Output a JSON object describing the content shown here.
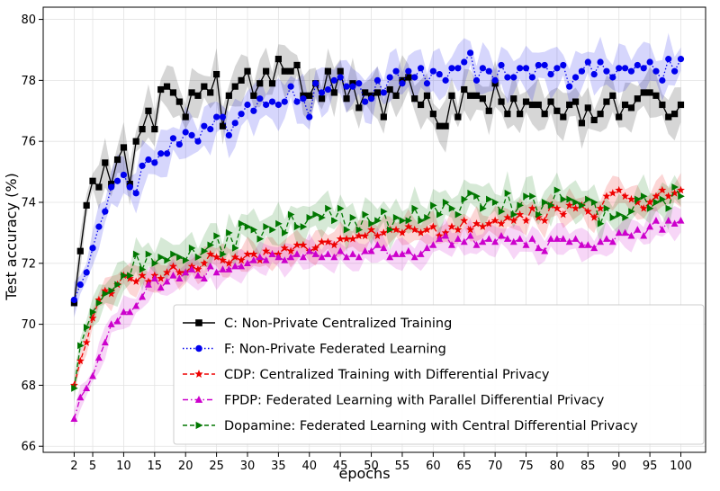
{
  "chart_data": {
    "type": "line",
    "xlabel": "epochs",
    "ylabel": "Test accuracy (%)",
    "xlim": [
      -3,
      104
    ],
    "ylim": [
      65.8,
      80.4
    ],
    "xticks": [
      2,
      5,
      10,
      15,
      20,
      25,
      30,
      35,
      40,
      45,
      50,
      55,
      60,
      65,
      70,
      75,
      80,
      85,
      90,
      95,
      100
    ],
    "yticks": [
      66,
      68,
      70,
      72,
      74,
      76,
      78,
      80
    ],
    "grid": true,
    "legend_position": "bottom-right",
    "x": [
      2,
      3,
      4,
      5,
      6,
      7,
      8,
      9,
      10,
      11,
      12,
      13,
      14,
      15,
      16,
      17,
      18,
      19,
      20,
      21,
      22,
      23,
      24,
      25,
      26,
      27,
      28,
      29,
      30,
      31,
      32,
      33,
      34,
      35,
      36,
      37,
      38,
      39,
      40,
      41,
      42,
      43,
      44,
      45,
      46,
      47,
      48,
      49,
      50,
      51,
      52,
      53,
      54,
      55,
      56,
      57,
      58,
      59,
      60,
      61,
      62,
      63,
      64,
      65,
      66,
      67,
      68,
      69,
      70,
      71,
      72,
      73,
      74,
      75,
      76,
      77,
      78,
      79,
      80,
      81,
      82,
      83,
      84,
      85,
      86,
      87,
      88,
      89,
      90,
      91,
      92,
      93,
      94,
      95,
      96,
      97,
      98,
      99,
      100
    ],
    "series": [
      {
        "name": "C: Non-Private Centralized Training",
        "color": "#000000",
        "marker": "square",
        "linestyle": "solid",
        "band": 0.6,
        "values": [
          70.7,
          72.4,
          73.9,
          74.7,
          74.5,
          75.3,
          74.6,
          75.4,
          75.8,
          74.6,
          76.0,
          76.4,
          77.0,
          76.4,
          77.7,
          77.8,
          77.6,
          77.3,
          76.8,
          77.6,
          77.5,
          77.8,
          77.6,
          78.2,
          76.5,
          77.5,
          77.8,
          78.0,
          78.3,
          77.5,
          77.9,
          78.3,
          77.9,
          78.7,
          78.3,
          78.3,
          78.5,
          77.5,
          77.5,
          77.9,
          77.4,
          78.3,
          77.6,
          78.3,
          77.4,
          77.9,
          77.1,
          77.6,
          77.5,
          77.6,
          76.8,
          77.7,
          77.5,
          78.0,
          78.1,
          77.4,
          77.2,
          77.5,
          76.9,
          76.5,
          76.5,
          77.5,
          76.8,
          77.7,
          77.5,
          77.5,
          77.4,
          77.0,
          77.9,
          77.3,
          76.9,
          77.4,
          76.9,
          77.3,
          77.2,
          77.2,
          76.9,
          77.3,
          77.0,
          76.8,
          77.2,
          77.3,
          76.6,
          77.1,
          76.7,
          76.9,
          77.3,
          77.5,
          76.8,
          77.2,
          77.1,
          77.4,
          77.6,
          77.6,
          77.5,
          77.2,
          76.8,
          76.9,
          77.2
        ]
      },
      {
        "name": "F: Non-Private Federated Learning",
        "color": "#0000ee",
        "marker": "circle",
        "linestyle": "dotted",
        "band": 0.6,
        "values": [
          70.8,
          71.3,
          71.7,
          72.5,
          73.2,
          73.7,
          74.5,
          74.7,
          74.9,
          74.5,
          74.3,
          75.2,
          75.4,
          75.3,
          75.6,
          75.6,
          76.1,
          75.9,
          76.3,
          76.2,
          76.0,
          76.5,
          76.4,
          76.8,
          76.8,
          76.2,
          76.6,
          76.9,
          77.2,
          77.0,
          77.4,
          77.2,
          77.3,
          77.2,
          77.3,
          77.8,
          77.3,
          77.4,
          76.8,
          77.9,
          77.6,
          77.7,
          78.0,
          78.1,
          77.8,
          77.8,
          77.9,
          77.3,
          77.4,
          78.0,
          77.6,
          78.1,
          78.3,
          77.9,
          78.3,
          78.1,
          78.4,
          77.9,
          78.3,
          78.2,
          78.0,
          78.4,
          78.4,
          78.6,
          78.9,
          78.0,
          78.4,
          78.3,
          78.0,
          78.5,
          78.1,
          78.1,
          78.4,
          78.4,
          78.1,
          78.5,
          78.5,
          78.2,
          78.4,
          78.5,
          77.8,
          78.1,
          78.3,
          78.6,
          78.2,
          78.6,
          78.3,
          78.1,
          78.4,
          78.4,
          78.3,
          78.5,
          78.4,
          78.6,
          78.3,
          78.0,
          78.7,
          78.3,
          78.7
        ]
      },
      {
        "name": "CDP: Centralized Training with Differential Privacy",
        "color": "#ee0000",
        "marker": "star",
        "linestyle": "dashed",
        "band": 0.4,
        "values": [
          68.0,
          68.8,
          69.4,
          70.2,
          70.8,
          71.1,
          71.0,
          71.3,
          71.6,
          71.5,
          71.4,
          71.6,
          71.4,
          71.6,
          71.5,
          71.7,
          71.9,
          71.7,
          71.7,
          71.9,
          71.8,
          72.0,
          72.3,
          72.2,
          72.1,
          72.0,
          72.2,
          72.1,
          72.3,
          72.3,
          72.1,
          72.4,
          72.3,
          72.3,
          72.5,
          72.4,
          72.6,
          72.6,
          72.4,
          72.5,
          72.7,
          72.7,
          72.6,
          72.8,
          72.8,
          72.8,
          72.9,
          72.9,
          73.1,
          72.9,
          73.0,
          73.1,
          73.1,
          73.0,
          73.2,
          73.1,
          73.0,
          73.1,
          73.2,
          72.9,
          73.0,
          73.2,
          73.1,
          73.4,
          73.1,
          73.3,
          73.2,
          73.3,
          73.4,
          73.3,
          73.5,
          73.4,
          73.6,
          73.4,
          73.8,
          73.5,
          73.4,
          73.9,
          73.8,
          73.6,
          73.9,
          73.8,
          73.9,
          73.7,
          73.5,
          73.8,
          74.2,
          74.3,
          74.4,
          74.2,
          74.1,
          74.0,
          73.8,
          74.0,
          74.2,
          74.4,
          74.2,
          74.3,
          74.4
        ]
      },
      {
        "name": "FPDP: Federated Learning with Parallel Differential Privacy",
        "color": "#cc00cc",
        "marker": "triangle-up",
        "linestyle": "dashdot",
        "band": 0.4,
        "values": [
          66.9,
          67.6,
          67.9,
          68.3,
          68.9,
          69.4,
          70.0,
          70.1,
          70.4,
          70.4,
          70.6,
          70.9,
          71.3,
          71.5,
          71.2,
          71.4,
          71.6,
          71.5,
          71.7,
          71.8,
          71.6,
          71.5,
          71.9,
          71.7,
          71.8,
          71.8,
          71.9,
          71.9,
          72.0,
          72.1,
          72.2,
          72.1,
          72.3,
          72.2,
          72.1,
          72.2,
          72.3,
          72.2,
          72.4,
          72.3,
          72.2,
          72.3,
          72.2,
          72.4,
          72.2,
          72.3,
          72.2,
          72.4,
          72.4,
          72.6,
          72.5,
          72.2,
          72.3,
          72.3,
          72.4,
          72.2,
          72.3,
          72.5,
          72.6,
          72.8,
          72.9,
          72.6,
          72.8,
          72.7,
          72.9,
          72.6,
          72.7,
          72.8,
          72.7,
          72.9,
          72.8,
          72.7,
          72.8,
          72.6,
          72.8,
          72.5,
          72.4,
          72.8,
          72.8,
          72.8,
          72.7,
          72.8,
          72.6,
          72.6,
          72.5,
          72.7,
          72.8,
          72.7,
          73.0,
          73.0,
          72.9,
          73.1,
          72.9,
          73.2,
          73.4,
          73.1,
          73.4,
          73.3,
          73.4
        ]
      },
      {
        "name": "Dopamine: Federated Learning with Central Differential Privacy",
        "color": "#007700",
        "marker": "triangle-right",
        "linestyle": "dashed",
        "band": 0.5,
        "values": [
          67.9,
          69.3,
          69.9,
          70.4,
          70.7,
          71.0,
          71.1,
          71.3,
          71.6,
          71.6,
          72.3,
          71.8,
          72.3,
          72.0,
          72.2,
          72.1,
          72.3,
          72.2,
          72.1,
          72.5,
          72.2,
          72.4,
          72.6,
          72.9,
          72.3,
          73.0,
          72.5,
          73.3,
          73.2,
          73.1,
          72.8,
          73.2,
          73.1,
          73.3,
          73.0,
          73.6,
          73.2,
          73.2,
          73.5,
          73.6,
          73.5,
          73.8,
          73.4,
          73.8,
          73.1,
          73.5,
          73.1,
          73.6,
          73.3,
          73.4,
          73.7,
          73.1,
          73.5,
          73.4,
          73.4,
          73.8,
          73.4,
          73.5,
          73.9,
          73.6,
          74.0,
          73.8,
          73.6,
          74.1,
          74.3,
          74.2,
          73.8,
          74.1,
          74.0,
          73.7,
          74.3,
          73.6,
          73.9,
          74.2,
          74.2,
          73.6,
          74.0,
          73.9,
          74.4,
          74.1,
          74.1,
          74.0,
          73.9,
          74.1,
          74.0,
          73.3,
          73.8,
          73.5,
          73.6,
          73.5,
          73.7,
          74.1,
          74.2,
          73.8,
          74.0,
          74.1,
          73.8,
          74.5,
          74.2
        ]
      }
    ]
  }
}
